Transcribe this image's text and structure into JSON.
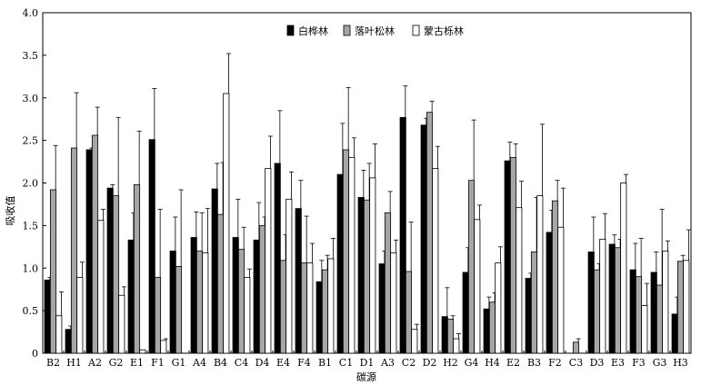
{
  "chart_data": {
    "type": "bar",
    "xlabel": "碳源",
    "ylabel": "吸收值",
    "ylim": [
      0,
      4.0
    ],
    "yticks": [
      "0",
      "0.5",
      "1.0",
      "1.5",
      "2.0",
      "2.5",
      "3.0",
      "3.5",
      "4.0"
    ],
    "legend_position": "top-center",
    "grid": false,
    "categories": [
      "B2",
      "H1",
      "A2",
      "G2",
      "E1",
      "F1",
      "G1",
      "A4",
      "B4",
      "C4",
      "D4",
      "E4",
      "F4",
      "B1",
      "C1",
      "D1",
      "A3",
      "C2",
      "D2",
      "H2",
      "G4",
      "H4",
      "E2",
      "B3",
      "F2",
      "C3",
      "D3",
      "E3",
      "F3",
      "G3",
      "H3"
    ],
    "series": [
      {
        "name": "白桦林",
        "color": "#000000",
        "values": [
          0.86,
          0.28,
          2.39,
          1.94,
          1.33,
          2.51,
          1.2,
          1.36,
          1.93,
          1.36,
          1.33,
          2.23,
          1.7,
          0.84,
          2.1,
          1.83,
          1.05,
          2.77,
          2.68,
          0.43,
          0.95,
          0.52,
          2.26,
          0.88,
          1.42,
          0.0,
          1.19,
          1.28,
          0.98,
          0.95,
          0.46
        ],
        "errors": [
          0.03,
          0.04,
          0.02,
          0.04,
          0.32,
          0.6,
          0.4,
          0.3,
          0.3,
          0.45,
          0.44,
          0.62,
          0.33,
          0.25,
          0.6,
          0.32,
          0.15,
          0.37,
          0.08,
          0.34,
          0.29,
          0.14,
          0.22,
          0.06,
          0.26,
          0.0,
          0.41,
          0.11,
          0.31,
          0.24,
          0.2
        ]
      },
      {
        "name": "落叶松林",
        "color": "#a6a6a6",
        "values": [
          1.92,
          2.41,
          2.56,
          1.85,
          1.98,
          0.89,
          1.02,
          1.2,
          1.63,
          1.22,
          1.5,
          1.09,
          1.06,
          0.98,
          2.39,
          1.8,
          1.65,
          0.96,
          2.83,
          0.4,
          2.03,
          0.6,
          2.3,
          1.19,
          1.79,
          0.13,
          0.98,
          1.24,
          0.9,
          0.8,
          1.08
        ],
        "errors": [
          0.52,
          0.65,
          0.33,
          0.92,
          0.63,
          0.8,
          0.9,
          0.45,
          0.61,
          0.26,
          0.1,
          0.3,
          0.55,
          0.17,
          0.73,
          0.43,
          0.25,
          0.58,
          0.13,
          0.04,
          0.71,
          0.11,
          0.16,
          0.64,
          0.24,
          0.04,
          0.07,
          0.1,
          0.45,
          0.89,
          0.07
        ]
      },
      {
        "name": "蒙古栎林",
        "color": "#ffffff",
        "values": [
          0.44,
          0.89,
          1.56,
          0.68,
          0.04,
          0.15,
          0.0,
          1.18,
          3.05,
          0.89,
          2.17,
          1.81,
          1.06,
          1.11,
          2.3,
          2.06,
          1.18,
          0.28,
          2.17,
          0.17,
          1.57,
          1.06,
          1.71,
          1.85,
          1.48,
          0.0,
          1.34,
          2.0,
          0.56,
          1.2,
          1.09
        ],
        "errors": [
          0.28,
          0.18,
          0.13,
          0.1,
          0.0,
          0.02,
          0.0,
          0.52,
          0.47,
          0.1,
          0.38,
          0.32,
          0.23,
          0.24,
          0.23,
          0.4,
          0.15,
          0.06,
          0.26,
          0.06,
          0.17,
          0.19,
          0.31,
          0.84,
          0.46,
          0.0,
          0.3,
          0.1,
          0.26,
          0.12,
          0.36
        ]
      }
    ]
  }
}
